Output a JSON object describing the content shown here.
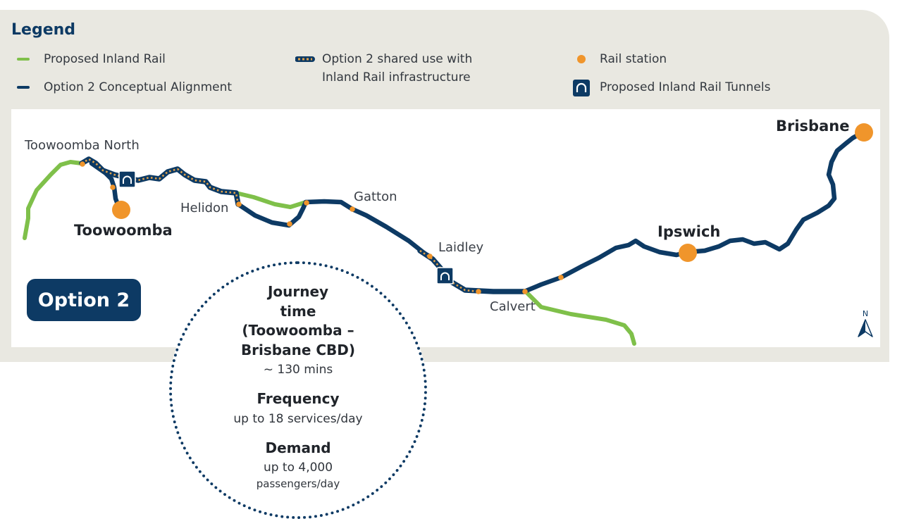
{
  "colors": {
    "panel_bg": "#e9e8e1",
    "inland_rail_green": "#7fc04a",
    "option2_navy": "#0d3a64",
    "station_orange": "#f0952b"
  },
  "legend": {
    "title": "Legend",
    "items": [
      {
        "symbol": "green-line",
        "label": "Proposed Inland Rail"
      },
      {
        "symbol": "navy-line",
        "label": "Option 2 Conceptual Alignment"
      },
      {
        "symbol": "navy-dotted-line",
        "label": "Option 2 shared use with\nInland Rail infrastructure"
      },
      {
        "symbol": "orange-dot",
        "label": "Rail station"
      },
      {
        "symbol": "tunnel-icon",
        "label": "Proposed Inland Rail Tunnels"
      }
    ]
  },
  "map": {
    "places": {
      "toowoomba_north": "Toowoomba North",
      "toowoomba": "Toowoomba",
      "helidon": "Helidon",
      "gatton": "Gatton",
      "laidley": "Laidley",
      "calvert": "Calvert",
      "ipswich": "Ipswich",
      "brisbane": "Brisbane"
    },
    "option_label": "Option 2",
    "north_label": "N"
  },
  "info": {
    "journey_heading": "Journey\ntime\n(Toowoomba –\nBrisbane CBD)",
    "journey_value": "~ 130 mins",
    "frequency_heading": "Frequency",
    "frequency_value": "up to 18 services/day",
    "demand_heading": "Demand",
    "demand_value_line1": "up to 4,000",
    "demand_value_line2": "passengers/day"
  }
}
